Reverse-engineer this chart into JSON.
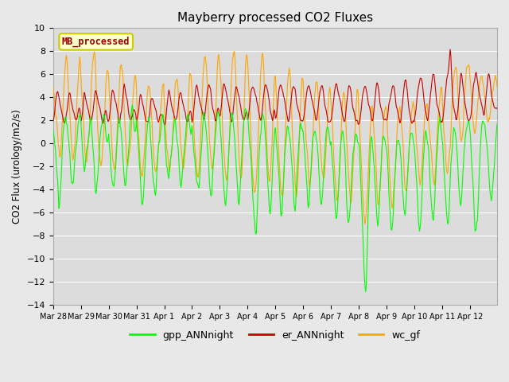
{
  "title": "Mayberry processed CO2 Fluxes",
  "ylabel": "CO2 Flux (urology/m2/s)",
  "ylim": [
    -14,
    10
  ],
  "yticks": [
    -14,
    -12,
    -10,
    -8,
    -6,
    -4,
    -2,
    0,
    2,
    4,
    6,
    8,
    10
  ],
  "colors": {
    "gpp": "#00FF00",
    "er": "#CC0000",
    "wc": "#FFA500",
    "fig_bg": "#E8E8E8",
    "plot_bg": "#DCDCDC",
    "grid": "#FFFFFF",
    "legend_box_fill": "#FFFFCC",
    "legend_box_edge": "#CCCC00",
    "legend_text": "#990000"
  },
  "legend_entries": [
    "gpp_ANNnight",
    "er_ANNnight",
    "wc_gf"
  ],
  "inset_label": "MB_processed",
  "xtick_labels": [
    "Mar 28",
    "Mar 29",
    "Mar 30",
    "Mar 31",
    "Apr 1",
    "Apr 2",
    "Apr 3",
    "Apr 4",
    "Apr 5",
    "Apr 6",
    "Apr 7",
    "Apr 8",
    "Apr 9",
    "Apr 10",
    "Apr 11",
    "Apr 12"
  ],
  "linewidth": 0.8,
  "n_days": 16,
  "pts_per_day": 48
}
